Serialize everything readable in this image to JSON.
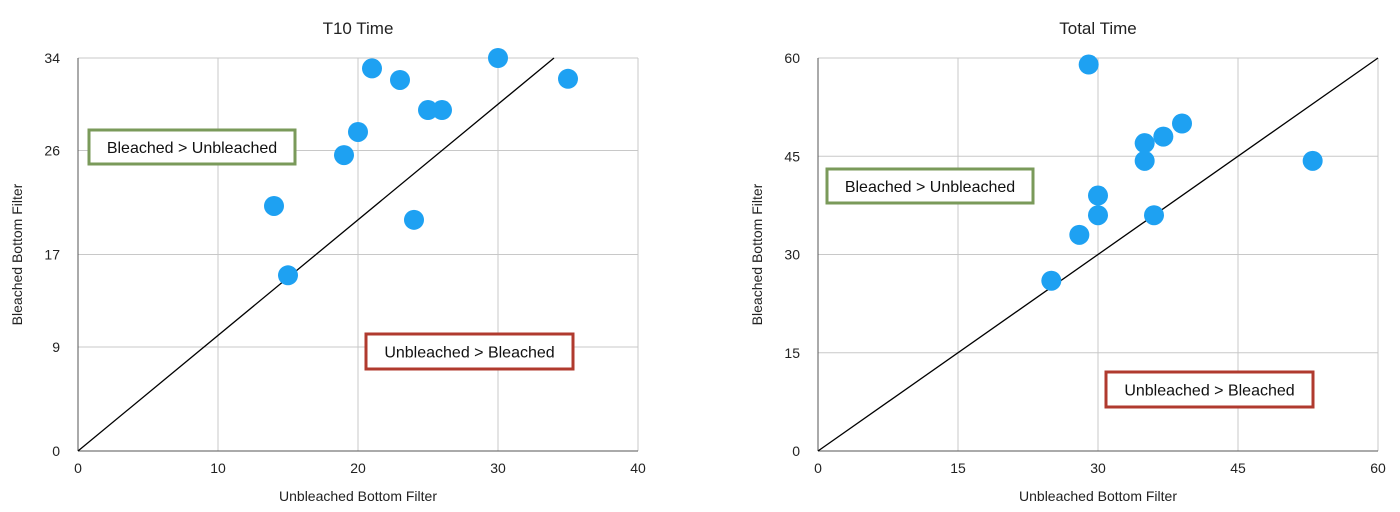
{
  "chart_data": [
    {
      "type": "scatter",
      "title": "T10 Time",
      "xlabel": "Unbleached Bottom Filter",
      "ylabel": "Bleached Bottom Filter",
      "xlim": [
        0,
        40
      ],
      "ylim": [
        0,
        34
      ],
      "x_ticks": [
        0,
        10,
        20,
        30,
        40
      ],
      "y_ticks": [
        0,
        9,
        17,
        26,
        34
      ],
      "x_tick_labels": [
        "0",
        "10",
        "20",
        "30",
        "40"
      ],
      "y_tick_labels": [
        "0",
        "9",
        "17",
        "26",
        "34"
      ],
      "grid": true,
      "reference_line": "y = x",
      "point_color": "#1ea1f2",
      "series": [
        {
          "x": [
            14,
            15,
            19,
            20,
            21,
            23,
            24,
            25,
            26,
            30,
            35
          ],
          "y": [
            21.2,
            15.2,
            25.6,
            27.6,
            33.1,
            32.1,
            20.0,
            29.5,
            29.5,
            34.0,
            32.2
          ]
        }
      ],
      "annotations": [
        {
          "text": "Bleached > Unbleached",
          "position": "upper-left",
          "color": "#7a9a5a"
        },
        {
          "text": "Unbleached > Bleached",
          "position": "lower-right",
          "color": "#b03a2e"
        }
      ]
    },
    {
      "type": "scatter",
      "title": "Total Time",
      "xlabel": "Unbleached Bottom Filter",
      "ylabel": "Bleached Bottom Filter",
      "xlim": [
        0,
        60
      ],
      "ylim": [
        0,
        60
      ],
      "x_ticks": [
        0,
        15,
        30,
        45,
        60
      ],
      "y_ticks": [
        0,
        15,
        30,
        45,
        60
      ],
      "x_tick_labels": [
        "0",
        "15",
        "30",
        "45",
        "60"
      ],
      "y_tick_labels": [
        "0",
        "15",
        "30",
        "45",
        "60"
      ],
      "grid": true,
      "reference_line": "y = x",
      "point_color": "#1ea1f2",
      "series": [
        {
          "x": [
            25,
            28,
            29,
            30,
            30,
            35,
            35,
            36,
            37,
            39,
            53
          ],
          "y": [
            26,
            33,
            59,
            39,
            36,
            47,
            44.3,
            36,
            48,
            50,
            44.3
          ]
        }
      ],
      "annotations": [
        {
          "text": "Bleached > Unbleached",
          "position": "upper-left",
          "color": "#7a9a5a"
        },
        {
          "text": "Unbleached > Bleached",
          "position": "lower-right",
          "color": "#b03a2e"
        }
      ]
    }
  ]
}
